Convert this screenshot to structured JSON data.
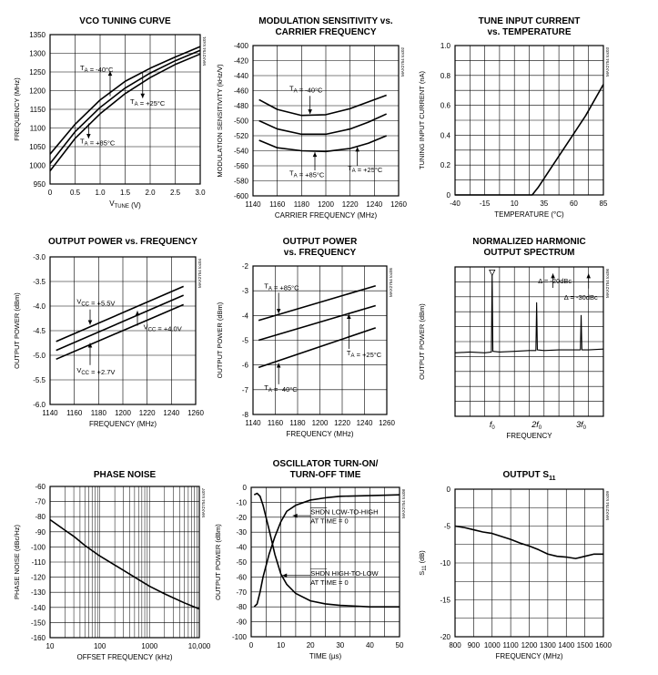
{
  "chart_data": [
    {
      "type": "line",
      "title": "VCO TUNING CURVE",
      "xlabel": "V_TUNE (V)",
      "ylabel": "FREQUENCY (MHz)",
      "xlim": [
        0,
        3.0
      ],
      "ylim": [
        950,
        1350
      ],
      "xticks": [
        0,
        0.5,
        1.0,
        1.5,
        2.0,
        2.5,
        3.0
      ],
      "xtick_labels": [
        "0",
        "0.5",
        "1.0",
        "1.5",
        "2.0",
        "2.5",
        "3.0"
      ],
      "yticks": [
        950,
        1000,
        1050,
        1100,
        1150,
        1200,
        1250,
        1300,
        1350
      ],
      "ytick_labels": [
        "950",
        "1000",
        "1050",
        "1100",
        "1150",
        "1200",
        "1250",
        "1300",
        "1350"
      ],
      "xgrid": [
        0.5,
        1.0,
        1.5,
        2.0,
        2.5
      ],
      "ygrid": [
        1000,
        1050,
        1100,
        1150,
        1200,
        1250,
        1300
      ],
      "code": "MAX2754 toc01",
      "series": [
        {
          "name": "T_A = -40°C",
          "x": [
            0,
            0.5,
            1.0,
            1.5,
            2.0,
            2.5,
            3.0
          ],
          "y": [
            1030,
            1110,
            1175,
            1225,
            1260,
            1290,
            1318
          ]
        },
        {
          "name": "T_A = +25°C",
          "x": [
            0,
            0.5,
            1.0,
            1.5,
            2.0,
            2.5,
            3.0
          ],
          "y": [
            1005,
            1090,
            1155,
            1207,
            1247,
            1280,
            1308
          ]
        },
        {
          "name": "T_A = +85°C",
          "x": [
            0,
            0.5,
            1.0,
            1.5,
            2.0,
            2.5,
            3.0
          ],
          "y": [
            985,
            1072,
            1138,
            1192,
            1235,
            1270,
            1298
          ]
        }
      ],
      "annotations": [
        {
          "text": "T_A = -40°C",
          "x": 0.6,
          "y": 1255,
          "ax": 1.2,
          "ay": 1185,
          "hx": 1.2,
          "hy": 1252
        },
        {
          "text": "T_A = +25°C",
          "x": 1.6,
          "y": 1165,
          "ax": 1.85,
          "ay": 1250,
          "hx": 1.85,
          "hy": 1180
        },
        {
          "text": "T_A = +85°C",
          "x": 0.6,
          "y": 1058,
          "ax": 0.77,
          "ay": 1112,
          "hx": 0.77,
          "hy": 1072
        }
      ]
    },
    {
      "type": "line",
      "title": "MODULATION SENSITIVITY vs. CARRIER FREQUENCY",
      "xlabel": "CARRIER FREQUENCY (MHz)",
      "ylabel": "MODULATION SENSITIVITY (kHz/V)",
      "xlim": [
        1140,
        1260
      ],
      "ylim": [
        -600,
        -400
      ],
      "xticks": [
        1140,
        1160,
        1180,
        1200,
        1220,
        1240,
        1260
      ],
      "xtick_labels": [
        "1140",
        "1160",
        "1180",
        "1200",
        "1220",
        "1240",
        "1260"
      ],
      "yticks": [
        -600,
        -580,
        -560,
        -540,
        -520,
        -500,
        -480,
        -460,
        -440,
        -420,
        -400
      ],
      "ytick_labels": [
        "-600",
        "-580",
        "-560",
        "-540",
        "-520",
        "-500",
        "-480",
        "-460",
        "-440",
        "-420",
        "-400"
      ],
      "xgrid": [
        1160,
        1180,
        1200,
        1220,
        1240
      ],
      "ygrid": [
        -580,
        -560,
        -540,
        -520,
        -500,
        -480,
        -460,
        -440,
        -420
      ],
      "code": "MAX2754 toc02",
      "series": [
        {
          "name": "T_A = -40°C",
          "x": [
            1145,
            1160,
            1180,
            1200,
            1220,
            1235,
            1250
          ],
          "y": [
            -472,
            -485,
            -493,
            -492,
            -484,
            -475,
            -466
          ]
        },
        {
          "name": "T_A = +25°C",
          "x": [
            1145,
            1160,
            1180,
            1200,
            1220,
            1235,
            1250
          ],
          "y": [
            -500,
            -511,
            -518,
            -518,
            -511,
            -502,
            -491
          ]
        },
        {
          "name": "T_A = +85°C",
          "x": [
            1145,
            1160,
            1180,
            1200,
            1220,
            1235,
            1250
          ],
          "y": [
            -526,
            -536,
            -540,
            -541,
            -537,
            -530,
            -520
          ]
        }
      ],
      "annotations": [
        {
          "text": "T_A = -40°C",
          "x": 1170,
          "y": -460,
          "ax": 1187,
          "ay": -467,
          "hx": 1187,
          "hy": -491
        },
        {
          "text": "T_A = +25°C",
          "x": 1218,
          "y": -566,
          "ax": 1226,
          "ay": -560,
          "hx": 1226,
          "hy": -535
        },
        {
          "text": "T_A = +85°C",
          "x": 1170,
          "y": -573,
          "ax": 1191,
          "ay": -566,
          "hx": 1191,
          "hy": -542
        }
      ]
    },
    {
      "type": "line",
      "title": "TUNE INPUT CURRENT vs. TEMPERATURE",
      "xlabel": "TEMPERATURE (°C)",
      "ylabel": "TUNING INPUT CURRENT (nA)",
      "xlim": [
        -40,
        85
      ],
      "ylim": [
        0,
        1.0
      ],
      "xticks": [
        -40,
        -15,
        10,
        35,
        60,
        85
      ],
      "xtick_labels": [
        "-40",
        "-15",
        "10",
        "35",
        "60",
        "85"
      ],
      "yticks": [
        0,
        0.2,
        0.4,
        0.6,
        0.8,
        1.0
      ],
      "ytick_labels": [
        "0",
        "0.2",
        "0.4",
        "0.6",
        "0.8",
        "1.0"
      ],
      "xgrid": [
        -27.5,
        -15,
        -2.5,
        10,
        22.5,
        35,
        47.5,
        60,
        72.5
      ],
      "ygrid": [
        0.1,
        0.2,
        0.3,
        0.4,
        0.5,
        0.6,
        0.7,
        0.8,
        0.9
      ],
      "code": "MAX2754 toc03",
      "series": [
        {
          "name": "",
          "x": [
            -40,
            25,
            30,
            35,
            40,
            50,
            60,
            70,
            85
          ],
          "y": [
            0,
            0,
            0.05,
            0.11,
            0.17,
            0.29,
            0.41,
            0.53,
            0.74
          ]
        }
      ],
      "annotations": []
    },
    {
      "type": "line",
      "title": "OUTPUT POWER vs. FREQUENCY",
      "xlabel": "FREQUENCY (MHz)",
      "ylabel": "OUTPUT POWER (dBm)",
      "xlim": [
        1140,
        1260
      ],
      "ylim": [
        -6.0,
        -3.0
      ],
      "xticks": [
        1140,
        1160,
        1180,
        1200,
        1220,
        1240,
        1260
      ],
      "xtick_labels": [
        "1140",
        "1160",
        "1180",
        "1200",
        "1220",
        "1240",
        "1260"
      ],
      "yticks": [
        -6.0,
        -5.5,
        -5.0,
        -4.5,
        -4.0,
        -3.5,
        -3.0
      ],
      "ytick_labels": [
        "-6.0",
        "-5.5",
        "-5.0",
        "-4.5",
        "-4.0",
        "-3.5",
        "-3.0"
      ],
      "xgrid": [
        1160,
        1180,
        1200,
        1220,
        1240
      ],
      "ygrid": [
        -5.5,
        -5.0,
        -4.5,
        -4.0,
        -3.5
      ],
      "code": "MAX2754 toc04",
      "series": [
        {
          "name": "V_CC = +5.5V",
          "x": [
            1145,
            1250
          ],
          "y": [
            -4.72,
            -3.6
          ]
        },
        {
          "name": "V_CC = +4.0V",
          "x": [
            1145,
            1250
          ],
          "y": [
            -4.9,
            -3.78
          ]
        },
        {
          "name": "V_CC = +2.7V",
          "x": [
            1145,
            1250
          ],
          "y": [
            -5.08,
            -3.97
          ]
        }
      ],
      "annotations": [
        {
          "text": "V_CC = +5.5V",
          "x": 1162,
          "y": -3.95,
          "ax": 1173,
          "ay": -4.07,
          "hx": 1173,
          "hy": -4.38
        },
        {
          "text": "V_CC = +4.0V",
          "x": 1217,
          "y": -4.47,
          "ax": 1212,
          "ay": -4.4,
          "hx": 1212,
          "hy": -4.1
        },
        {
          "text": "V_CC = +2.7V",
          "x": 1162,
          "y": -5.35,
          "ax": 1173,
          "ay": -5.2,
          "hx": 1173,
          "hy": -4.75
        }
      ]
    },
    {
      "type": "line",
      "title": "OUTPUT POWER vs. FREQUENCY",
      "xlabel": "FREQUENCY (MHz)",
      "ylabel": "OUTPUT POWER (dBm)",
      "xlim": [
        1140,
        1260
      ],
      "ylim": [
        -8,
        -2
      ],
      "xticks": [
        1140,
        1160,
        1180,
        1200,
        1220,
        1240,
        1260
      ],
      "xtick_labels": [
        "1140",
        "1160",
        "1180",
        "1200",
        "1220",
        "1240",
        "1260"
      ],
      "yticks": [
        -8,
        -7,
        -6,
        -5,
        -4,
        -3,
        -2
      ],
      "ytick_labels": [
        "-8",
        "-7",
        "-6",
        "-5",
        "-4",
        "-3",
        "-2"
      ],
      "xgrid": [
        1160,
        1180,
        1200,
        1220,
        1240
      ],
      "ygrid": [
        -7,
        -6,
        -5,
        -4,
        -3
      ],
      "code": "MAX2754 toc05",
      "series": [
        {
          "name": "T_A = +85°C",
          "x": [
            1145,
            1250
          ],
          "y": [
            -4.2,
            -2.8
          ]
        },
        {
          "name": "T_A = +25°C",
          "x": [
            1145,
            1250
          ],
          "y": [
            -5.0,
            -3.6
          ]
        },
        {
          "name": "T_A = -40°C",
          "x": [
            1145,
            1250
          ],
          "y": [
            -6.1,
            -4.5
          ]
        }
      ],
      "annotations": [
        {
          "text": "T_A = +85°C",
          "x": 1150,
          "y": -2.9,
          "ax": 1163,
          "ay": -3.08,
          "hx": 1163,
          "hy": -3.92
        },
        {
          "text": "T_A = +25°C",
          "x": 1224,
          "y": -5.6,
          "ax": 1226,
          "ay": -5.35,
          "hx": 1226,
          "hy": -3.95
        },
        {
          "text": "T_A = -40°C",
          "x": 1150,
          "y": -7.0,
          "ax": 1163,
          "ay": -6.78,
          "hx": 1163,
          "hy": -5.92
        }
      ]
    },
    {
      "type": "line",
      "title": "NORMALIZED HARMONIC OUTPUT SPECTRUM",
      "xlabel": "FREQUENCY",
      "ylabel": "OUTPUT POWER (dBm)",
      "xlim": [
        0,
        10
      ],
      "ylim": [
        0,
        10
      ],
      "xticks": [
        2.5,
        5.5,
        8.5
      ],
      "xtick_labels": [
        "f0",
        "2f0",
        "3f0"
      ],
      "yticks": [],
      "ytick_labels": [],
      "xgrid": [
        1,
        2,
        3,
        4,
        5,
        6,
        7,
        8,
        9
      ],
      "ygrid": [
        1,
        2,
        3,
        4,
        5,
        6,
        7,
        8,
        9
      ],
      "code": "MAX2754 toc06",
      "series": [
        {
          "name": "",
          "x": [
            0,
            1,
            2,
            2.45,
            2.5,
            2.55,
            3,
            4,
            5,
            5.45,
            5.5,
            5.55,
            6,
            7,
            8,
            8.45,
            8.5,
            8.55,
            9,
            10
          ],
          "y": [
            4.25,
            4.3,
            4.25,
            4.3,
            9.6,
            4.35,
            4.3,
            4.35,
            4.4,
            4.4,
            7.6,
            4.45,
            4.4,
            4.45,
            4.45,
            4.45,
            6.75,
            4.45,
            4.45,
            4.5
          ]
        }
      ],
      "marker": {
        "x": 2.5,
        "y": 9.55
      },
      "annotations": [
        {
          "text": "Δ = -20dBc",
          "x": 5.6,
          "y": 8.9,
          "ax": 6.6,
          "ay": 8.6,
          "hx": 6.6,
          "hy": 9.55
        },
        {
          "text": "Δ = -30dBc",
          "x": 7.35,
          "y": 7.8,
          "ax": 9.0,
          "ay": 8.55,
          "hx": 9.0,
          "hy": 9.55
        }
      ]
    },
    {
      "type": "line",
      "title": "PHASE NOISE",
      "xlabel": "OFFSET FREQUENCY (kHz)",
      "ylabel": "PHASE NOISE (dBc/Hz)",
      "xscale": "log",
      "xlim": [
        10,
        10000
      ],
      "ylim": [
        -160,
        -60
      ],
      "xticks": [
        10,
        100,
        1000,
        10000
      ],
      "xtick_labels": [
        "10",
        "100",
        "1000",
        "10,000"
      ],
      "yticks": [
        -160,
        -150,
        -140,
        -130,
        -120,
        -110,
        -100,
        -90,
        -80,
        -70,
        -60
      ],
      "ytick_labels": [
        "-160",
        "-150",
        "-140",
        "-130",
        "-120",
        "-110",
        "-100",
        "-90",
        "-80",
        "-70",
        "-60"
      ],
      "xgrid": [
        20,
        30,
        40,
        50,
        60,
        70,
        80,
        90,
        100,
        200,
        300,
        400,
        500,
        600,
        700,
        800,
        900,
        1000,
        2000,
        3000,
        4000,
        5000,
        6000,
        7000,
        8000,
        9000
      ],
      "ygrid": [
        -150,
        -140,
        -130,
        -120,
        -110,
        -100,
        -90,
        -80,
        -70
      ],
      "code": "MAX2754 toc07",
      "series": [
        {
          "name": "",
          "x": [
            10,
            20,
            30,
            50,
            100,
            200,
            500,
            1000,
            2000,
            5000,
            10000
          ],
          "y": [
            -82,
            -89,
            -93,
            -99,
            -106,
            -112,
            -120,
            -126,
            -131,
            -137,
            -141
          ]
        }
      ],
      "annotations": []
    },
    {
      "type": "line",
      "title": "OSCILLATOR TURN-ON/ TURN-OFF TIME",
      "xlabel": "TIME (µs)",
      "ylabel": "OUTPUT POWER (dBm)",
      "xlim": [
        0,
        50
      ],
      "ylim": [
        -100,
        0
      ],
      "xticks": [
        0,
        10,
        20,
        30,
        40,
        50
      ],
      "xtick_labels": [
        "0",
        "10",
        "20",
        "30",
        "40",
        "50"
      ],
      "yticks": [
        -100,
        -90,
        -80,
        -70,
        -60,
        -50,
        -40,
        -30,
        -20,
        -10,
        0
      ],
      "ytick_labels": [
        "-100",
        "-90",
        "-80",
        "-70",
        "-60",
        "-50",
        "-40",
        "-30",
        "-20",
        "-10",
        "0"
      ],
      "xgrid": [
        5,
        10,
        15,
        20,
        25,
        30,
        35,
        40,
        45
      ],
      "ygrid": [
        -90,
        -80,
        -70,
        -60,
        -50,
        -40,
        -30,
        -20,
        -10
      ],
      "code": "MAX2754 toc08",
      "series": [
        {
          "name": "SHDN LOW-TO-HIGH AT TIME = 0",
          "x": [
            1,
            1.5,
            2,
            3,
            4,
            6,
            8,
            10,
            12,
            15,
            20,
            25,
            30,
            40,
            50
          ],
          "y": [
            -80,
            -79,
            -78,
            -70,
            -60,
            -45,
            -33,
            -23,
            -16,
            -12,
            -8.5,
            -7,
            -6,
            -5.5,
            -5
          ]
        },
        {
          "name": "SHDN HIGH-TO-LOW AT TIME = 0",
          "x": [
            1,
            2,
            3,
            4,
            6,
            8,
            10,
            12,
            15,
            20,
            25,
            30,
            40,
            50
          ],
          "y": [
            -5,
            -4,
            -6,
            -12,
            -28,
            -45,
            -58,
            -65,
            -71,
            -76,
            -78,
            -79,
            -80,
            -80
          ]
        }
      ],
      "annotations": [
        {
          "text": "SHDN LOW-TO-HIGH",
          "text2": "AT TIME = 0",
          "x": 20,
          "y": -18,
          "ax": 20,
          "ay": -19,
          "hx": 14,
          "hy": -19
        },
        {
          "text": "SHDN HIGH-TO-LOW",
          "text2": "AT TIME = 0",
          "x": 20,
          "y": -59,
          "ax": 20,
          "ay": -59,
          "hx": 10.5,
          "hy": -59
        }
      ]
    },
    {
      "type": "line",
      "title": "OUTPUT S11",
      "xlabel": "FREQUENCY (MHz)",
      "ylabel": "S11 (dB)",
      "xlim": [
        800,
        1600
      ],
      "ylim": [
        -20,
        0
      ],
      "xticks": [
        800,
        900,
        1000,
        1100,
        1200,
        1300,
        1400,
        1500,
        1600
      ],
      "xtick_labels": [
        "800",
        "900",
        "1000",
        "1100",
        "1200",
        "1300",
        "1400",
        "1500",
        "1600"
      ],
      "yticks": [
        -20,
        -15,
        -10,
        -5,
        0
      ],
      "ytick_labels": [
        "-20",
        "-15",
        "-10",
        "-5",
        "0"
      ],
      "xgrid": [
        900,
        1000,
        1100,
        1200,
        1300,
        1400,
        1500
      ],
      "ygrid": [
        -17.5,
        -15,
        -12.5,
        -10,
        -7.5,
        -5,
        -2.5
      ],
      "code": "MAX2754 toc09",
      "series": [
        {
          "name": "",
          "x": [
            800,
            850,
            900,
            950,
            1000,
            1050,
            1100,
            1150,
            1200,
            1250,
            1300,
            1350,
            1400,
            1450,
            1500,
            1550,
            1600
          ],
          "y": [
            -5.0,
            -5.2,
            -5.5,
            -5.8,
            -6.0,
            -6.4,
            -6.8,
            -7.3,
            -7.7,
            -8.2,
            -8.8,
            -9.1,
            -9.2,
            -9.4,
            -9.1,
            -8.8,
            -8.8
          ]
        }
      ],
      "annotations": []
    }
  ]
}
